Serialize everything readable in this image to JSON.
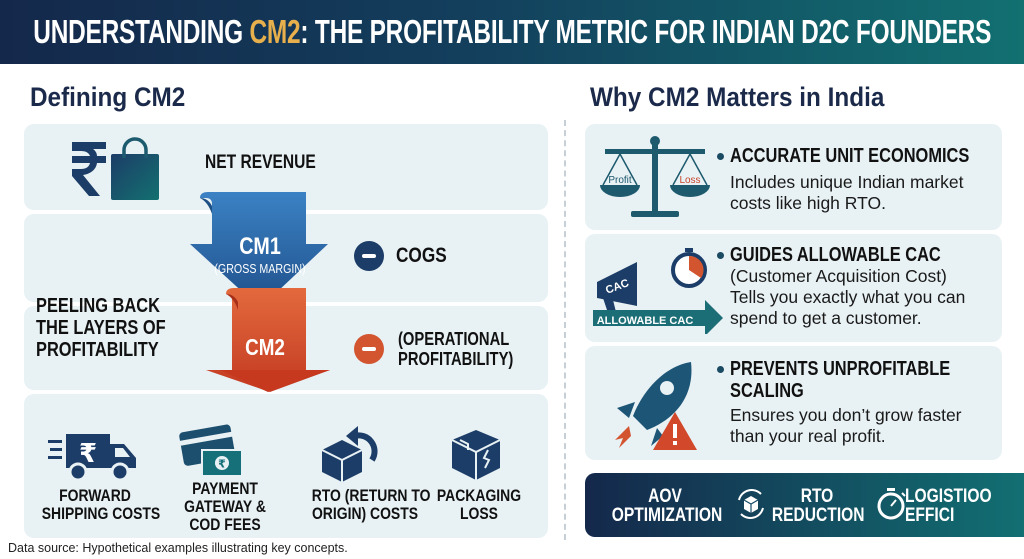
{
  "header": {
    "title_pre": "UNDERSTANDING ",
    "title_highlight": "CM2",
    "title_post": ": THE PROFITABILITY METRIC FOR INDIAN D2C FOUNDERS"
  },
  "left": {
    "heading": "Defining CM2",
    "net_revenue": "NET REVENUE",
    "cm1": {
      "label": "CM1",
      "sub": "(GROSS MARGIN)",
      "deduction": "COGS"
    },
    "cm2": {
      "label": "CM2",
      "deduction_line1": "(OPERATIONAL",
      "deduction_line2": "PROFITABILITY)"
    },
    "side_label": [
      "PEELING BACK",
      "THE LAYERS OF",
      "PROFITABILITY"
    ],
    "costs": [
      {
        "lines": [
          "FORWARD",
          "SHIPPING COSTS"
        ],
        "icon": "delivery-truck-rupee-icon"
      },
      {
        "lines": [
          "PAYMENT",
          "GATEWAY &",
          "COD FEES"
        ],
        "icon": "card-cash-icon"
      },
      {
        "lines": [
          "RTO (RETURN TO",
          "ORIGIN) COSTS"
        ],
        "icon": "box-return-icon"
      },
      {
        "lines": [
          "PACKAGING",
          "LOSS"
        ],
        "icon": "damaged-box-icon"
      }
    ]
  },
  "right": {
    "heading": "Why CM2 Matters in India",
    "items": [
      {
        "title": "ACCURATE UNIT ECONOMICS",
        "text": [
          "Includes unique Indian market",
          "costs like high RTO."
        ],
        "icon_labels": [
          "Profit",
          "Loss"
        ]
      },
      {
        "title": "GUIDES ALLOWABLE CAC",
        "text": [
          "(Customer Acquisition Cost)",
          "Tells you exactly what you can",
          "spend to get a customer."
        ],
        "icon_labels": [
          "CAC",
          "ALLOWABLE CAC"
        ]
      },
      {
        "title": [
          "PREVENTS UNPROFITABLE",
          "SCALING"
        ],
        "text": [
          "Ensures you don’t grow faster",
          "than your real profit."
        ]
      }
    ],
    "banner": [
      {
        "lines": [
          "AOV",
          "OPTIMIZATION"
        ]
      },
      {
        "lines": [
          "RTO",
          "REDUCTION"
        ]
      },
      {
        "lines": [
          "LOGISTIOO",
          "EFFICI"
        ]
      }
    ]
  },
  "footer": "Data source: Hypothetical examples illustrating key concepts.",
  "colors": {
    "navy": "#14284b",
    "teal": "#127071",
    "gold": "#e8b04d",
    "blue": "#2f6fae",
    "red": "#d2482a"
  }
}
